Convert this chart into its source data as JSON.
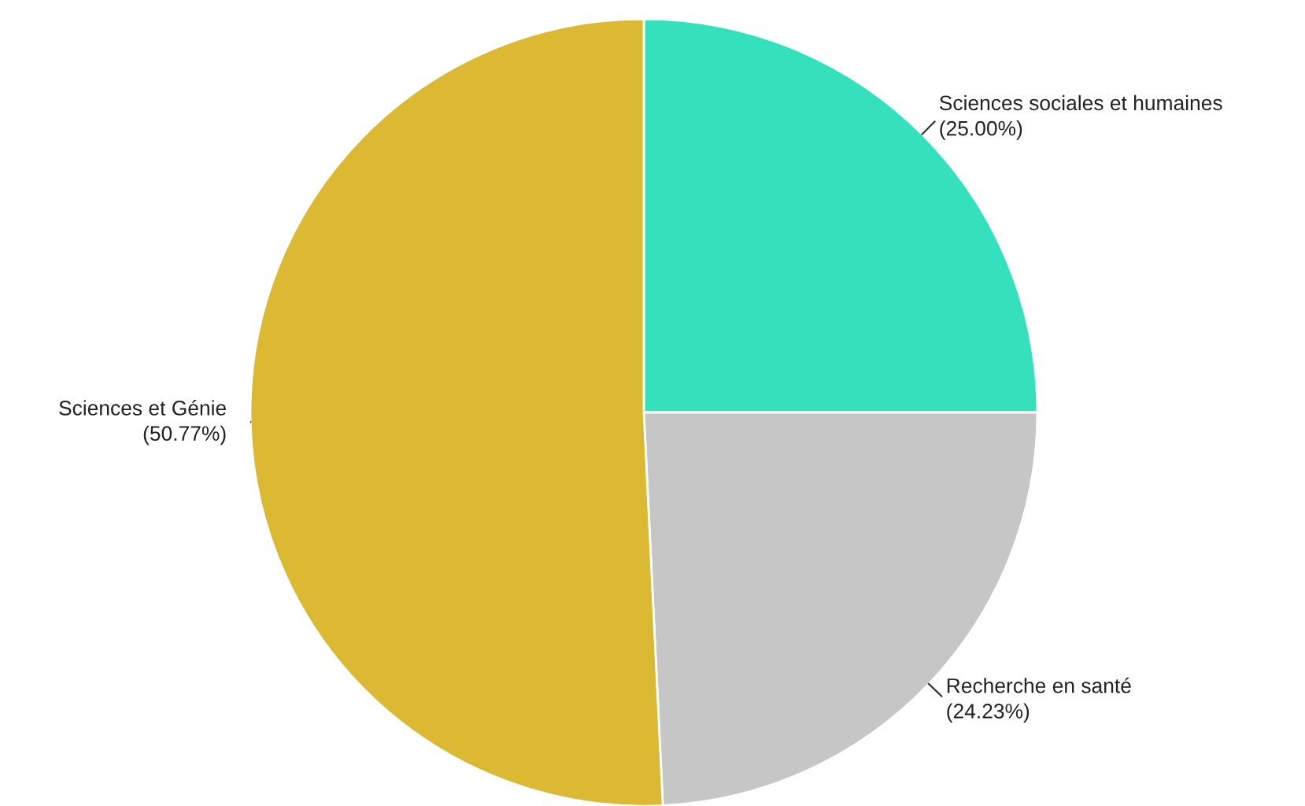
{
  "chart_data": {
    "type": "pie",
    "categories": [
      "Sciences sociales et humaines",
      "Recherche en santé",
      "Sciences et Génie"
    ],
    "values": [
      25.0,
      24.23,
      50.77
    ],
    "colors": [
      "#35e0bc",
      "#c6c6c6",
      "#dbb932"
    ],
    "value_labels": [
      "(25.00%)",
      "(24.23%)",
      "(50.77%)"
    ],
    "legend": false
  }
}
